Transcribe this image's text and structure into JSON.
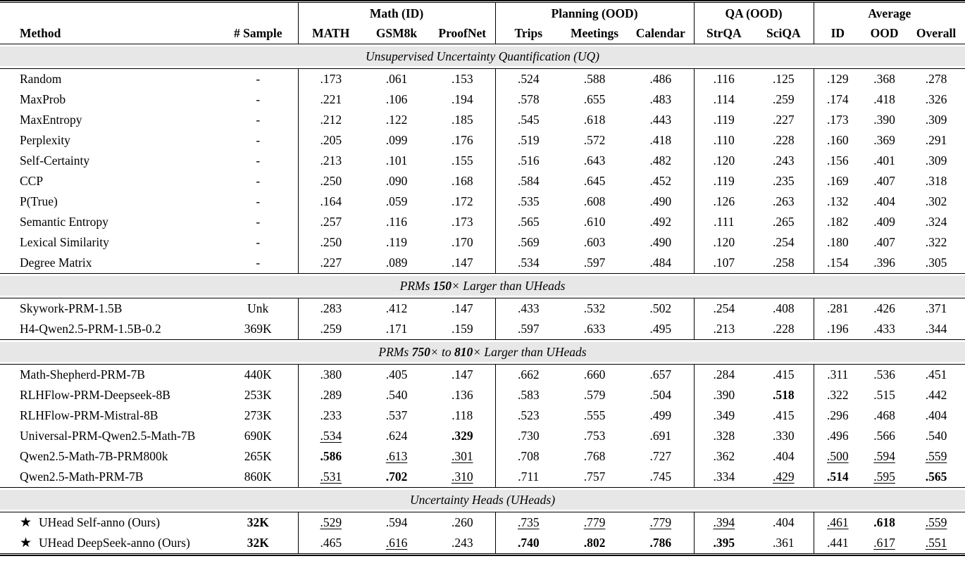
{
  "page": {
    "background": "#ffffff",
    "band_color": "#e7e7e7",
    "text_color": "#000000"
  },
  "icons": {
    "star": "★"
  },
  "table": {
    "header": {
      "method": "Method",
      "sample": "# Sample",
      "groups": [
        {
          "label": "Math (ID)",
          "cols": [
            "MATH",
            "GSM8k",
            "ProofNet"
          ]
        },
        {
          "label": "Planning (OOD)",
          "cols": [
            "Trips",
            "Meetings",
            "Calendar"
          ]
        },
        {
          "label": "QA (OOD)",
          "cols": [
            "StrQA",
            "SciQA"
          ]
        },
        {
          "label": "Average",
          "cols": [
            "ID",
            "OOD",
            "Overall"
          ]
        }
      ]
    },
    "sections": [
      {
        "title": [
          {
            "t": "Unsupervised Uncertainty Quantification (UQ)"
          }
        ],
        "rows": [
          {
            "method": "Random",
            "star": false,
            "sample": "-",
            "cells": [
              ".173",
              ".061",
              ".153",
              ".524",
              ".588",
              ".486",
              ".116",
              ".125",
              ".129",
              ".368",
              ".278"
            ]
          },
          {
            "method": "MaxProb",
            "star": false,
            "sample": "-",
            "cells": [
              ".221",
              ".106",
              ".194",
              ".578",
              ".655",
              ".483",
              ".114",
              ".259",
              ".174",
              ".418",
              ".326"
            ]
          },
          {
            "method": "MaxEntropy",
            "star": false,
            "sample": "-",
            "cells": [
              ".212",
              ".122",
              ".185",
              ".545",
              ".618",
              ".443",
              ".119",
              ".227",
              ".173",
              ".390",
              ".309"
            ]
          },
          {
            "method": "Perplexity",
            "star": false,
            "sample": "-",
            "cells": [
              ".205",
              ".099",
              ".176",
              ".519",
              ".572",
              ".418",
              ".110",
              ".228",
              ".160",
              ".369",
              ".291"
            ]
          },
          {
            "method": "Self-Certainty",
            "star": false,
            "sample": "-",
            "cells": [
              ".213",
              ".101",
              ".155",
              ".516",
              ".643",
              ".482",
              ".120",
              ".243",
              ".156",
              ".401",
              ".309"
            ]
          },
          {
            "method": "CCP",
            "star": false,
            "sample": "-",
            "cells": [
              ".250",
              ".090",
              ".168",
              ".584",
              ".645",
              ".452",
              ".119",
              ".235",
              ".169",
              ".407",
              ".318"
            ]
          },
          {
            "method": "P(True)",
            "star": false,
            "sample": "-",
            "cells": [
              ".164",
              ".059",
              ".172",
              ".535",
              ".608",
              ".490",
              ".126",
              ".263",
              ".132",
              ".404",
              ".302"
            ]
          },
          {
            "method": "Semantic Entropy",
            "star": false,
            "sample": "-",
            "cells": [
              ".257",
              ".116",
              ".173",
              ".565",
              ".610",
              ".492",
              ".111",
              ".265",
              ".182",
              ".409",
              ".324"
            ]
          },
          {
            "method": "Lexical Similarity",
            "star": false,
            "sample": "-",
            "cells": [
              ".250",
              ".119",
              ".170",
              ".569",
              ".603",
              ".490",
              ".120",
              ".254",
              ".180",
              ".407",
              ".322"
            ]
          },
          {
            "method": "Degree Matrix",
            "star": false,
            "sample": "-",
            "cells": [
              ".227",
              ".089",
              ".147",
              ".534",
              ".597",
              ".484",
              ".107",
              ".258",
              ".154",
              ".396",
              ".305"
            ]
          }
        ]
      },
      {
        "title": [
          {
            "t": "PRMs "
          },
          {
            "t": "150",
            "b": true
          },
          {
            "t": "× Larger than UHeads"
          }
        ],
        "rows": [
          {
            "method": "Skywork-PRM-1.5B",
            "star": false,
            "sample": "Unk",
            "cells": [
              ".283",
              ".412",
              ".147",
              ".433",
              ".532",
              ".502",
              ".254",
              ".408",
              ".281",
              ".426",
              ".371"
            ]
          },
          {
            "method": "H4-Qwen2.5-PRM-1.5B-0.2",
            "star": false,
            "sample": "369K",
            "cells": [
              ".259",
              ".171",
              ".159",
              ".597",
              ".633",
              ".495",
              ".213",
              ".228",
              ".196",
              ".433",
              ".344"
            ]
          }
        ]
      },
      {
        "title": [
          {
            "t": "PRMs "
          },
          {
            "t": "750",
            "b": true
          },
          {
            "t": "× to "
          },
          {
            "t": "810",
            "b": true
          },
          {
            "t": "× Larger than UHeads"
          }
        ],
        "rows": [
          {
            "method": "Math-Shepherd-PRM-7B",
            "star": false,
            "sample": "440K",
            "cells": [
              ".380",
              ".405",
              ".147",
              ".662",
              ".660",
              ".657",
              ".284",
              ".415",
              ".311",
              ".536",
              ".451"
            ]
          },
          {
            "method": "RLHFlow-PRM-Deepseek-8B",
            "star": false,
            "sample": "253K",
            "cells": [
              ".289",
              ".540",
              ".136",
              ".583",
              ".579",
              ".504",
              ".390",
              {
                "v": ".518",
                "f": "b"
              },
              ".322",
              ".515",
              ".442"
            ]
          },
          {
            "method": "RLHFlow-PRM-Mistral-8B",
            "star": false,
            "sample": "273K",
            "cells": [
              ".233",
              ".537",
              ".118",
              ".523",
              ".555",
              ".499",
              ".349",
              ".415",
              ".296",
              ".468",
              ".404"
            ]
          },
          {
            "method": "Universal-PRM-Qwen2.5-Math-7B",
            "star": false,
            "sample": "690K",
            "cells": [
              {
                "v": ".534",
                "f": "u"
              },
              ".624",
              {
                "v": ".329",
                "f": "b"
              },
              ".730",
              ".753",
              ".691",
              ".328",
              ".330",
              ".496",
              ".566",
              ".540"
            ]
          },
          {
            "method": "Qwen2.5-Math-7B-PRM800k",
            "star": false,
            "sample": "265K",
            "cells": [
              {
                "v": ".586",
                "f": "b"
              },
              {
                "v": ".613",
                "f": "u"
              },
              {
                "v": ".301",
                "f": "u"
              },
              ".708",
              ".768",
              ".727",
              ".362",
              ".404",
              {
                "v": ".500",
                "f": "u"
              },
              {
                "v": ".594",
                "f": "u"
              },
              {
                "v": ".559",
                "f": "u"
              }
            ]
          },
          {
            "method": "Qwen2.5-Math-PRM-7B",
            "star": false,
            "sample": "860K",
            "cells": [
              {
                "v": ".531",
                "f": "u"
              },
              {
                "v": ".702",
                "f": "b"
              },
              {
                "v": ".310",
                "f": "u"
              },
              ".711",
              ".757",
              ".745",
              ".334",
              {
                "v": ".429",
                "f": "u"
              },
              {
                "v": ".514",
                "f": "b"
              },
              {
                "v": ".595",
                "f": "u"
              },
              {
                "v": ".565",
                "f": "b"
              }
            ]
          }
        ]
      },
      {
        "title": [
          {
            "t": "Uncertainty Heads (UHeads)"
          }
        ],
        "rows": [
          {
            "method": "UHead Self-anno (Ours)",
            "star": true,
            "sample": {
              "v": "32K",
              "f": "b"
            },
            "cells": [
              {
                "v": ".529",
                "f": "u"
              },
              ".594",
              ".260",
              {
                "v": ".735",
                "f": "u"
              },
              {
                "v": ".779",
                "f": "u"
              },
              {
                "v": ".779",
                "f": "u"
              },
              {
                "v": ".394",
                "f": "u"
              },
              ".404",
              {
                "v": ".461",
                "f": "u"
              },
              {
                "v": ".618",
                "f": "b"
              },
              {
                "v": ".559",
                "f": "u"
              }
            ]
          },
          {
            "method": "UHead DeepSeek-anno (Ours)",
            "star": true,
            "sample": {
              "v": "32K",
              "f": "b"
            },
            "cells": [
              ".465",
              {
                "v": ".616",
                "f": "u"
              },
              ".243",
              {
                "v": ".740",
                "f": "b"
              },
              {
                "v": ".802",
                "f": "b"
              },
              {
                "v": ".786",
                "f": "b"
              },
              {
                "v": ".395",
                "f": "b"
              },
              ".361",
              ".441",
              {
                "v": ".617",
                "f": "u"
              },
              {
                "v": ".551",
                "f": "u"
              }
            ]
          }
        ]
      }
    ]
  }
}
